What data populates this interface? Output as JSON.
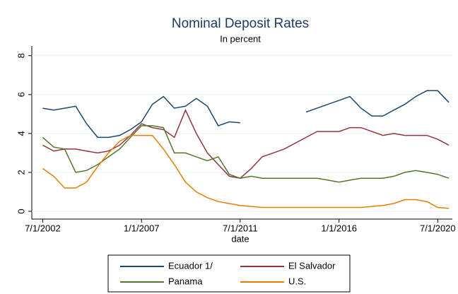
{
  "chart_data": {
    "type": "line",
    "title": "Nominal Deposit Rates",
    "subtitle": "In percent",
    "x_label": "date",
    "x": [
      "2002-07-01",
      "2003-01-01",
      "2003-07-01",
      "2004-01-01",
      "2004-07-01",
      "2005-01-01",
      "2005-07-01",
      "2006-01-01",
      "2006-07-01",
      "2007-01-01",
      "2007-07-01",
      "2008-01-01",
      "2008-07-01",
      "2009-01-01",
      "2009-07-01",
      "2010-01-01",
      "2010-07-01",
      "2011-01-01",
      "2011-07-01",
      "2012-01-01",
      "2012-07-01",
      "2013-01-01",
      "2013-07-01",
      "2014-01-01",
      "2014-07-01",
      "2015-01-01",
      "2015-07-01",
      "2016-01-01",
      "2016-07-01",
      "2017-01-01",
      "2017-07-01",
      "2018-01-01",
      "2018-07-01",
      "2019-01-01",
      "2019-07-01",
      "2020-01-01",
      "2020-07-01",
      "2021-01-01"
    ],
    "series": [
      {
        "name": "Ecuador 1/",
        "color": "#1a476f",
        "values": [
          5.3,
          5.2,
          5.3,
          5.4,
          4.5,
          3.8,
          3.8,
          3.9,
          4.2,
          4.6,
          5.5,
          5.9,
          5.3,
          5.4,
          5.8,
          5.4,
          4.4,
          4.6,
          4.55,
          null,
          null,
          null,
          null,
          null,
          5.1,
          5.3,
          5.5,
          5.7,
          5.9,
          5.3,
          4.9,
          4.9,
          5.2,
          5.5,
          5.9,
          6.2,
          6.2,
          5.6
        ]
      },
      {
        "name": "El Salvador",
        "color": "#90353b",
        "values": [
          3.4,
          3.1,
          3.2,
          3.2,
          3.1,
          3.0,
          3.1,
          3.4,
          3.9,
          4.5,
          4.3,
          4.2,
          3.8,
          5.2,
          4.0,
          3.0,
          2.4,
          1.8,
          1.7,
          2.2,
          2.8,
          3.0,
          3.2,
          3.5,
          3.8,
          4.1,
          4.1,
          4.1,
          4.3,
          4.3,
          4.1,
          3.9,
          4.0,
          3.9,
          3.9,
          3.9,
          3.7,
          3.4
        ]
      },
      {
        "name": "Panama",
        "color": "#55752f",
        "values": [
          3.8,
          3.3,
          3.2,
          2.0,
          2.1,
          2.4,
          2.8,
          3.2,
          3.8,
          4.4,
          4.4,
          4.3,
          3.0,
          3.0,
          2.8,
          2.6,
          2.8,
          1.9,
          1.7,
          1.8,
          1.7,
          1.7,
          1.7,
          1.7,
          1.7,
          1.7,
          1.6,
          1.5,
          1.6,
          1.7,
          1.7,
          1.7,
          1.8,
          2.0,
          2.1,
          2.0,
          1.9,
          1.7
        ]
      },
      {
        "name": "U.S.",
        "color": "#e37e00",
        "values": [
          2.2,
          1.8,
          1.2,
          1.2,
          1.5,
          2.3,
          3.0,
          3.6,
          3.9,
          3.9,
          3.9,
          3.2,
          2.4,
          1.5,
          1.0,
          0.7,
          0.5,
          0.4,
          0.3,
          0.25,
          0.2,
          0.2,
          0.2,
          0.2,
          0.2,
          0.2,
          0.2,
          0.2,
          0.2,
          0.2,
          0.25,
          0.3,
          0.4,
          0.6,
          0.6,
          0.5,
          0.2,
          0.15
        ]
      }
    ],
    "xlim": [
      "2002-01-01",
      "2021-03-01"
    ],
    "xticks": [
      {
        "value": "2002-07-01",
        "label": "7/1/2002"
      },
      {
        "value": "2007-01-01",
        "label": "1/1/2007"
      },
      {
        "value": "2011-07-01",
        "label": "7/1/2011"
      },
      {
        "value": "2016-01-01",
        "label": "1/1/2016"
      },
      {
        "value": "2020-07-01",
        "label": "7/1/2020"
      }
    ],
    "ylim": [
      -0.4,
      8.5
    ],
    "yticks": [
      0,
      2,
      4,
      6,
      8
    ],
    "grid": true,
    "legend": "bottom"
  }
}
